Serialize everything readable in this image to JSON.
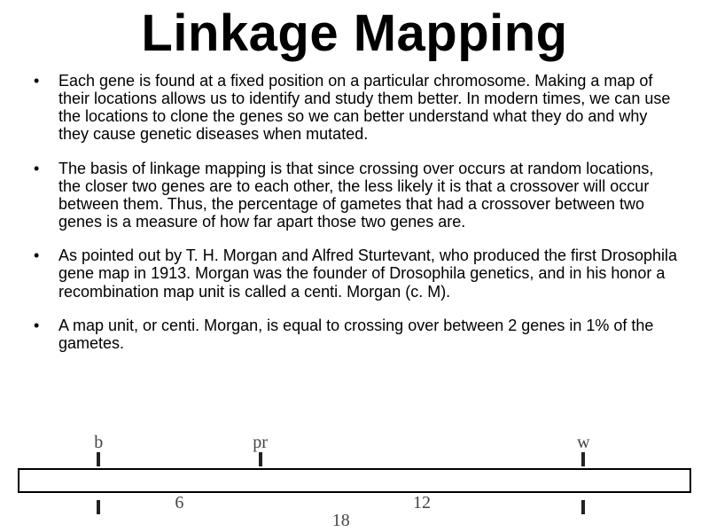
{
  "title": "Linkage Mapping",
  "bullets": [
    "Each gene is found at a fixed position on a particular chromosome.  Making a map of their locations allows us to identify and study them better.  In modern times, we can use the locations to clone the genes so we can better understand what they do and why they cause genetic diseases when mutated.",
    "The basis of linkage mapping is that since crossing over occurs at random locations, the closer two genes are to each other, the less likely it is that a crossover will occur between them.  Thus, the percentage of gametes that had a crossover between two genes is a measure of how far apart those two genes are.",
    "As pointed out by T. H. Morgan and Alfred Sturtevant, who produced the first Drosophila gene map in 1913.  Morgan was the founder of Drosophila genetics, and in his honor a recombination map unit is called a centi. Morgan (c. M).",
    "A map unit, or centi. Morgan, is equal to crossing over between 2 genes in 1% of the gametes."
  ],
  "diagram": {
    "genes": [
      {
        "label": "b",
        "pos_pct": 12
      },
      {
        "label": "pr",
        "pos_pct": 36
      },
      {
        "label": "w",
        "pos_pct": 84
      }
    ],
    "dist_top": [
      {
        "label": "6",
        "mid_pct": 24
      },
      {
        "label": "12",
        "mid_pct": 60
      }
    ],
    "dist_bot": {
      "label": "18",
      "mid_pct": 48
    },
    "colors": {
      "line": "#000000",
      "tick": "#222222",
      "text": "#444444",
      "bg": "#ffffff"
    }
  }
}
